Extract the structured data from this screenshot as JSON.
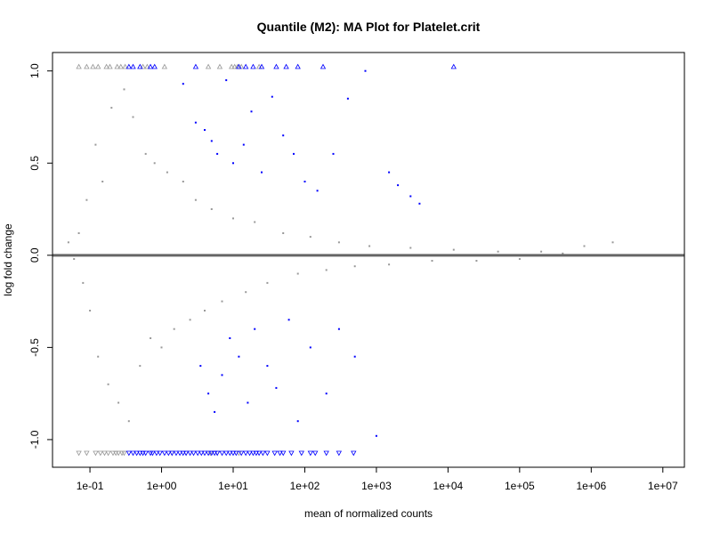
{
  "chart_data": {
    "type": "scatter",
    "title": "Quantile (M2): MA Plot for Platelet.crit",
    "xlabel": "mean of normalized counts",
    "ylabel": "log fold change",
    "x_scale": "log10",
    "xlim": [
      0.03,
      20000000
    ],
    "ylim": [
      -1.15,
      1.1
    ],
    "x_ticks": [
      {
        "value": 0.1,
        "label": "1e-01"
      },
      {
        "value": 1,
        "label": "1e+00"
      },
      {
        "value": 10,
        "label": "1e+01"
      },
      {
        "value": 100,
        "label": "1e+02"
      },
      {
        "value": 1000,
        "label": "1e+03"
      },
      {
        "value": 10000,
        "label": "1e+04"
      },
      {
        "value": 100000,
        "label": "1e+05"
      },
      {
        "value": 1000000,
        "label": "1e+06"
      },
      {
        "value": 10000000,
        "label": "1e+07"
      }
    ],
    "y_ticks": [
      {
        "value": -1.0,
        "label": "-1.0"
      },
      {
        "value": -0.5,
        "label": "-0.5"
      },
      {
        "value": 0.0,
        "label": "0.0"
      },
      {
        "value": 0.5,
        "label": "0.5"
      },
      {
        "value": 1.0,
        "label": "1.0"
      }
    ],
    "reference_line": {
      "y": 0,
      "color": "#666666"
    },
    "colors": {
      "nonsignificant": "#999999",
      "significant": "#0000ff"
    },
    "series": [
      {
        "points": [
          [
            0.05,
            0.07
          ],
          [
            0.06,
            -0.02
          ],
          [
            0.07,
            0.12
          ],
          [
            0.08,
            -0.15
          ],
          [
            0.09,
            0.3
          ],
          [
            0.1,
            -0.3
          ],
          [
            0.12,
            0.6
          ],
          [
            0.13,
            -0.55
          ],
          [
            0.15,
            0.4
          ],
          [
            0.18,
            -0.7
          ],
          [
            0.2,
            0.8
          ],
          [
            0.25,
            -0.8
          ],
          [
            0.3,
            0.9
          ],
          [
            0.35,
            -0.9
          ],
          [
            0.4,
            0.75
          ],
          [
            0.5,
            -0.6
          ],
          [
            0.6,
            0.55
          ],
          [
            0.7,
            -0.45
          ],
          [
            0.8,
            0.5
          ],
          [
            1.0,
            -0.5
          ],
          [
            1.2,
            0.45
          ],
          [
            1.5,
            -0.4
          ],
          [
            2,
            0.4
          ],
          [
            2.5,
            -0.35
          ],
          [
            3,
            0.3
          ],
          [
            4,
            -0.3
          ],
          [
            5,
            0.25
          ],
          [
            7,
            -0.25
          ],
          [
            10,
            0.2
          ],
          [
            15,
            -0.2
          ],
          [
            20,
            0.18
          ],
          [
            30,
            -0.15
          ],
          [
            50,
            0.12
          ],
          [
            80,
            -0.1
          ],
          [
            120,
            0.1
          ],
          [
            200,
            -0.08
          ],
          [
            300,
            0.07
          ],
          [
            500,
            -0.06
          ],
          [
            800,
            0.05
          ],
          [
            1500,
            -0.05
          ],
          [
            3000,
            0.04
          ],
          [
            6000,
            -0.03
          ],
          [
            12000,
            0.03
          ],
          [
            25000,
            -0.03
          ],
          [
            50000,
            0.02
          ],
          [
            100000,
            -0.02
          ],
          [
            200000,
            0.02
          ],
          [
            400000,
            0.01
          ],
          [
            800000,
            0.05
          ],
          [
            2000000,
            0.07
          ]
        ]
      },
      {
        "points": [
          [
            2,
            0.93
          ],
          [
            3,
            0.72
          ],
          [
            3.5,
            -0.6
          ],
          [
            4,
            0.68
          ],
          [
            4.5,
            -0.75
          ],
          [
            5,
            0.62
          ],
          [
            5.5,
            -0.85
          ],
          [
            6,
            0.55
          ],
          [
            7,
            -0.65
          ],
          [
            8,
            0.95
          ],
          [
            9,
            -0.45
          ],
          [
            10,
            0.5
          ],
          [
            12,
            -0.55
          ],
          [
            14,
            0.6
          ],
          [
            16,
            -0.8
          ],
          [
            18,
            0.78
          ],
          [
            20,
            -0.4
          ],
          [
            25,
            0.45
          ],
          [
            30,
            -0.6
          ],
          [
            35,
            0.86
          ],
          [
            40,
            -0.72
          ],
          [
            50,
            0.65
          ],
          [
            60,
            -0.35
          ],
          [
            70,
            0.55
          ],
          [
            80,
            -0.9
          ],
          [
            100,
            0.4
          ],
          [
            120,
            -0.5
          ],
          [
            150,
            0.35
          ],
          [
            200,
            -0.75
          ],
          [
            250,
            0.55
          ],
          [
            300,
            -0.4
          ],
          [
            400,
            0.85
          ],
          [
            500,
            -0.55
          ],
          [
            700,
            1.0
          ],
          [
            1000,
            -0.98
          ],
          [
            1500,
            0.45
          ],
          [
            2000,
            0.38
          ],
          [
            3000,
            0.32
          ],
          [
            4000,
            0.28
          ]
        ]
      }
    ],
    "clipped_up": {
      "gray": [
        0.07,
        0.09,
        0.11,
        0.13,
        0.17,
        0.19,
        0.24,
        0.27,
        0.31,
        0.55,
        0.63,
        1.1,
        4.5,
        6.5,
        9.5,
        10.5,
        11.5,
        13,
        23
      ],
      "blue": [
        0.35,
        0.4,
        0.5,
        0.7,
        0.8,
        3,
        12,
        15,
        19,
        25,
        40,
        55,
        80,
        180,
        12000
      ]
    },
    "clipped_down": {
      "gray": [
        0.07,
        0.09,
        0.12,
        0.14,
        0.16,
        0.18,
        0.21,
        0.23,
        0.25,
        0.28,
        0.3,
        1.4,
        2.2,
        4.8,
        6,
        12
      ],
      "blue": [
        0.35,
        0.4,
        0.45,
        0.5,
        0.55,
        0.6,
        0.7,
        0.75,
        0.85,
        0.95,
        1.1,
        1.25,
        1.4,
        1.6,
        1.8,
        2.0,
        2.2,
        2.5,
        2.8,
        3.2,
        3.6,
        4.0,
        4.5,
        5.0,
        5.5,
        6,
        7,
        8,
        9,
        10,
        11,
        13,
        15,
        17,
        19,
        21,
        23,
        26,
        30,
        38,
        45,
        50,
        65,
        90,
        120,
        140,
        200,
        300,
        480
      ]
    }
  }
}
